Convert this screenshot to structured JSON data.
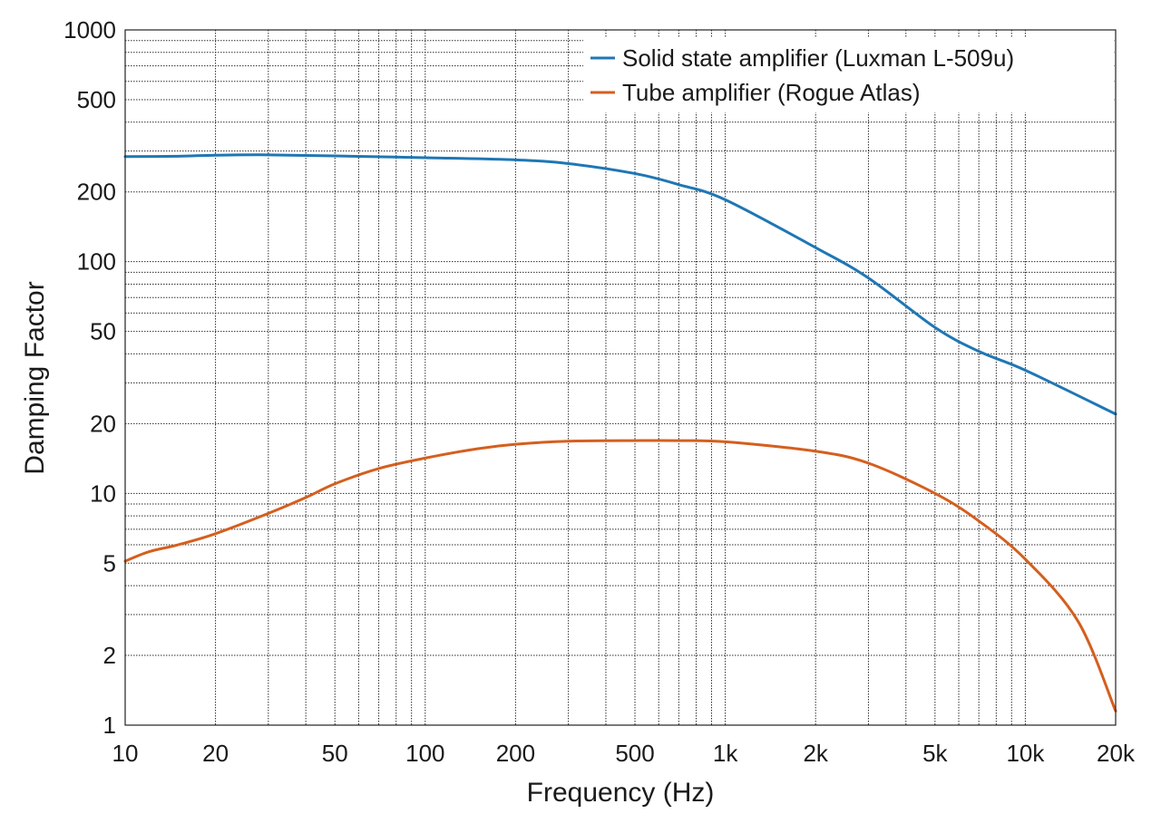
{
  "chart_data": {
    "type": "line",
    "title": "",
    "xlabel": "Frequency (Hz)",
    "ylabel": "Damping Factor",
    "x_scale": "log",
    "y_scale": "log",
    "xlim": [
      10,
      20000
    ],
    "ylim": [
      1,
      1000
    ],
    "grid": true,
    "legend_position": "top-right",
    "x_ticks": [
      {
        "value": 10,
        "label": "10"
      },
      {
        "value": 20,
        "label": "20"
      },
      {
        "value": 50,
        "label": "50"
      },
      {
        "value": 100,
        "label": "100"
      },
      {
        "value": 200,
        "label": "200"
      },
      {
        "value": 500,
        "label": "500"
      },
      {
        "value": 1000,
        "label": "1k"
      },
      {
        "value": 2000,
        "label": "2k"
      },
      {
        "value": 5000,
        "label": "5k"
      },
      {
        "value": 10000,
        "label": "10k"
      },
      {
        "value": 20000,
        "label": "20k"
      }
    ],
    "y_ticks": [
      {
        "value": 1,
        "label": "1"
      },
      {
        "value": 2,
        "label": "2"
      },
      {
        "value": 5,
        "label": "5"
      },
      {
        "value": 10,
        "label": "10"
      },
      {
        "value": 20,
        "label": "20"
      },
      {
        "value": 50,
        "label": "50"
      },
      {
        "value": 100,
        "label": "100"
      },
      {
        "value": 200,
        "label": "200"
      },
      {
        "value": 500,
        "label": "500"
      },
      {
        "value": 1000,
        "label": "1000"
      }
    ],
    "series": [
      {
        "name": "Solid state amplifier (Luxman L-509u)",
        "color": "#1f77b4",
        "x": [
          10,
          15,
          20,
          30,
          50,
          100,
          200,
          300,
          500,
          700,
          1000,
          2000,
          3000,
          5000,
          7000,
          10000,
          20000
        ],
        "y": [
          284,
          285,
          288,
          289,
          286,
          281,
          275,
          265,
          240,
          215,
          185,
          115,
          85,
          52,
          41,
          34,
          22
        ]
      },
      {
        "name": "Tube amplifier (Rogue Atlas)",
        "color": "#d45f1e",
        "x": [
          10,
          12,
          15,
          20,
          30,
          40,
          50,
          70,
          100,
          150,
          200,
          300,
          500,
          700,
          1000,
          2000,
          3000,
          5000,
          7000,
          10000,
          15000,
          20000
        ],
        "y": [
          5.1,
          5.6,
          6.0,
          6.7,
          8.2,
          9.6,
          11.0,
          12.8,
          14.2,
          15.6,
          16.3,
          16.8,
          16.9,
          16.9,
          16.7,
          15.2,
          13.5,
          10.0,
          7.6,
          5.2,
          2.8,
          1.15
        ]
      }
    ]
  }
}
